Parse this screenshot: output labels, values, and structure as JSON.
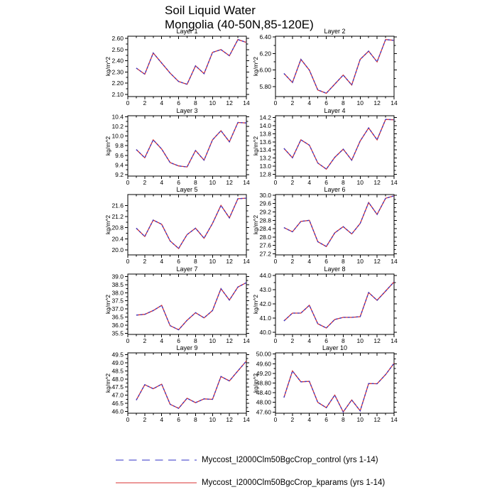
{
  "title": {
    "line1": "Soil Liquid Water",
    "line2": "Mongolia (40-50N,85-120E)"
  },
  "chart_data": {
    "type": "line",
    "x": [
      1,
      2,
      3,
      4,
      5,
      6,
      7,
      8,
      9,
      10,
      11,
      12,
      13,
      14
    ],
    "xlim": [
      0,
      14
    ],
    "xticks": [
      0,
      2,
      4,
      6,
      8,
      10,
      12,
      14
    ],
    "ylabel": "kg/m^2",
    "grid": "off",
    "legend_position": "bottom",
    "legend": [
      {
        "label": "Myccost_I2000Clm50BgcCrop_control (yrs 1-14)",
        "color": "#5b5bd0",
        "line_style": "dashed"
      },
      {
        "label": "Myccost_I2000Clm50BgcCrop_kparams (yrs 1-14)",
        "color": "#e05a5a",
        "line_style": "solid"
      }
    ],
    "plot_colors": {
      "control": "#3838c8",
      "kparams": "#d83030",
      "axis": "#000000"
    },
    "panels": [
      {
        "title": "Layer 1",
        "ylim": [
          2.08,
          2.62
        ],
        "yticks": [
          2.1,
          2.2,
          2.3,
          2.4,
          2.5,
          2.6
        ],
        "ytick_decimals": 2,
        "series": [
          {
            "name": "control",
            "values": [
              2.335,
              2.28,
              2.47,
              2.38,
              2.29,
              2.215,
              2.19,
              2.355,
              2.285,
              2.475,
              2.5,
              2.445,
              2.59,
              2.565
            ]
          },
          {
            "name": "kparams",
            "values": [
              2.335,
              2.28,
              2.47,
              2.38,
              2.29,
              2.215,
              2.19,
              2.355,
              2.285,
              2.475,
              2.5,
              2.445,
              2.59,
              2.565
            ]
          }
        ]
      },
      {
        "title": "Layer 2",
        "ylim": [
          5.68,
          6.41
        ],
        "yticks": [
          5.8,
          6.0,
          6.2,
          6.4
        ],
        "ytick_decimals": 2,
        "series": [
          {
            "name": "control",
            "values": [
              5.96,
              5.85,
              6.13,
              6.0,
              5.76,
              5.72,
              5.83,
              5.94,
              5.82,
              6.13,
              6.23,
              6.1,
              6.37,
              6.36
            ]
          },
          {
            "name": "kparams",
            "values": [
              5.96,
              5.85,
              6.13,
              6.0,
              5.76,
              5.72,
              5.83,
              5.94,
              5.82,
              6.13,
              6.23,
              6.1,
              6.37,
              6.36
            ]
          }
        ]
      },
      {
        "title": "Layer 3",
        "ylim": [
          9.17,
          10.42
        ],
        "yticks": [
          9.2,
          9.4,
          9.6,
          9.8,
          10.0,
          10.2,
          10.4
        ],
        "ytick_decimals": 1,
        "series": [
          {
            "name": "control",
            "values": [
              9.72,
              9.55,
              9.92,
              9.73,
              9.45,
              9.38,
              9.36,
              9.7,
              9.5,
              9.92,
              10.11,
              9.88,
              10.28,
              10.27
            ]
          },
          {
            "name": "kparams",
            "values": [
              9.72,
              9.55,
              9.92,
              9.73,
              9.45,
              9.38,
              9.36,
              9.7,
              9.5,
              9.92,
              10.11,
              9.88,
              10.28,
              10.27
            ]
          }
        ]
      },
      {
        "title": "Layer 4",
        "ylim": [
          12.76,
          14.24
        ],
        "yticks": [
          12.8,
          13.0,
          13.2,
          13.4,
          13.6,
          13.8,
          14.0,
          14.2
        ],
        "ytick_decimals": 1,
        "series": [
          {
            "name": "control",
            "values": [
              13.44,
              13.21,
              13.65,
              13.52,
              13.08,
              12.93,
              13.22,
              13.42,
              13.15,
              13.62,
              13.94,
              13.65,
              14.15,
              14.14
            ]
          },
          {
            "name": "kparams",
            "values": [
              13.44,
              13.21,
              13.65,
              13.52,
              13.08,
              12.93,
              13.22,
              13.42,
              13.15,
              13.62,
              13.94,
              13.65,
              14.15,
              14.14
            ]
          }
        ]
      },
      {
        "title": "Layer 5",
        "ylim": [
          19.82,
          21.99
        ],
        "yticks": [
          20.0,
          20.4,
          20.8,
          21.2,
          21.6
        ],
        "ytick_decimals": 1,
        "series": [
          {
            "name": "control",
            "values": [
              20.78,
              20.48,
              21.07,
              20.92,
              20.32,
              20.05,
              20.55,
              20.78,
              20.42,
              20.95,
              21.6,
              21.15,
              21.84,
              21.86
            ]
          },
          {
            "name": "kparams",
            "values": [
              20.78,
              20.48,
              21.07,
              20.92,
              20.32,
              20.05,
              20.55,
              20.78,
              20.42,
              20.95,
              21.6,
              21.15,
              21.84,
              21.86
            ]
          }
        ]
      },
      {
        "title": "Layer 6",
        "ylim": [
          27.15,
          30.03
        ],
        "yticks": [
          27.2,
          27.6,
          28.0,
          28.4,
          28.8,
          29.2,
          29.6,
          30.0
        ],
        "ytick_decimals": 1,
        "series": [
          {
            "name": "control",
            "values": [
              28.45,
              28.25,
              28.75,
              28.8,
              27.78,
              27.55,
              28.2,
              28.5,
              28.15,
              28.65,
              29.65,
              29.08,
              29.85,
              29.97
            ]
          },
          {
            "name": "kparams",
            "values": [
              28.45,
              28.25,
              28.75,
              28.8,
              27.78,
              27.55,
              28.2,
              28.5,
              28.15,
              28.65,
              29.65,
              29.08,
              29.85,
              29.97
            ]
          }
        ]
      },
      {
        "title": "Layer 7",
        "ylim": [
          35.43,
          39.15
        ],
        "yticks": [
          35.5,
          36.0,
          36.5,
          37.0,
          37.5,
          38.0,
          38.5,
          39.0
        ],
        "ytick_decimals": 1,
        "series": [
          {
            "name": "control",
            "values": [
              36.62,
              36.67,
              36.9,
              37.22,
              35.97,
              35.72,
              36.3,
              36.77,
              36.45,
              36.9,
              38.25,
              37.55,
              38.35,
              38.62
            ]
          },
          {
            "name": "kparams",
            "values": [
              36.62,
              36.67,
              36.9,
              37.22,
              35.97,
              35.72,
              36.3,
              36.77,
              36.45,
              36.9,
              38.25,
              37.55,
              38.35,
              38.62
            ]
          }
        ]
      },
      {
        "title": "Layer 8",
        "ylim": [
          39.85,
          44.1
        ],
        "yticks": [
          40.0,
          41.0,
          42.0,
          43.0,
          44.0
        ],
        "ytick_decimals": 1,
        "series": [
          {
            "name": "control",
            "values": [
              40.8,
              41.35,
              41.35,
              41.9,
              40.6,
              40.3,
              40.9,
              41.05,
              41.05,
              41.1,
              42.8,
              42.25,
              42.9,
              43.55
            ]
          },
          {
            "name": "kparams",
            "values": [
              40.8,
              41.35,
              41.35,
              41.9,
              40.6,
              40.3,
              40.9,
              41.05,
              41.05,
              41.1,
              42.8,
              42.25,
              42.9,
              43.55
            ]
          }
        ]
      },
      {
        "title": "Layer 9",
        "ylim": [
          45.9,
          49.6
        ],
        "yticks": [
          46.0,
          46.5,
          47.0,
          47.5,
          48.0,
          48.5,
          49.0,
          49.5
        ],
        "ytick_decimals": 1,
        "series": [
          {
            "name": "control",
            "values": [
              46.7,
              47.65,
              47.4,
              47.68,
              46.45,
              46.2,
              46.82,
              46.55,
              46.78,
              46.75,
              48.15,
              47.88,
              48.5,
              49.1
            ]
          },
          {
            "name": "kparams",
            "values": [
              46.7,
              47.65,
              47.4,
              47.68,
              46.45,
              46.2,
              46.82,
              46.55,
              46.78,
              46.75,
              48.15,
              47.88,
              48.5,
              49.1
            ]
          }
        ]
      },
      {
        "title": "Layer 10",
        "ylim": [
          47.55,
          50.05
        ],
        "yticks": [
          47.6,
          48.0,
          48.4,
          48.8,
          49.2,
          49.6,
          50.0
        ],
        "ytick_decimals": 2,
        "series": [
          {
            "name": "control",
            "values": [
              48.2,
              49.3,
              48.85,
              48.87,
              48.0,
              47.78,
              48.3,
              47.6,
              48.1,
              47.65,
              48.78,
              48.77,
              49.15,
              49.62
            ]
          },
          {
            "name": "kparams",
            "values": [
              48.2,
              49.3,
              48.85,
              48.87,
              48.0,
              47.78,
              48.3,
              47.6,
              48.1,
              47.65,
              48.78,
              48.77,
              49.15,
              49.62
            ]
          }
        ]
      }
    ]
  }
}
